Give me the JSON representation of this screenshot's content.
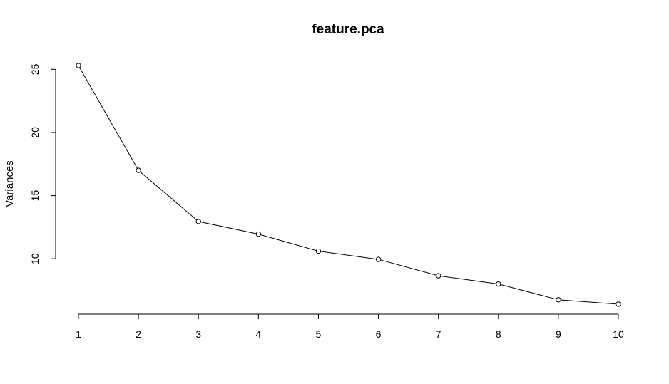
{
  "chart_data": {
    "type": "line",
    "title": "feature.pca",
    "xlabel": "",
    "ylabel": "Variances",
    "x": [
      1,
      2,
      3,
      4,
      5,
      6,
      7,
      8,
      9,
      10
    ],
    "series": [
      {
        "values": [
          25.3,
          17.0,
          12.95,
          11.95,
          10.6,
          9.95,
          8.65,
          8.0,
          6.75,
          6.4
        ]
      }
    ],
    "x_ticks": [
      "1",
      "2",
      "3",
      "4",
      "5",
      "6",
      "7",
      "8",
      "9",
      "10"
    ],
    "y_ticks": [
      "10",
      "15",
      "20",
      "25"
    ],
    "xlim": [
      1,
      10
    ],
    "ylim": [
      6.4,
      25.3
    ],
    "grid": false,
    "legend": "none",
    "colors": {
      "line": "#000000",
      "marker_fill": "#ffffff"
    }
  }
}
